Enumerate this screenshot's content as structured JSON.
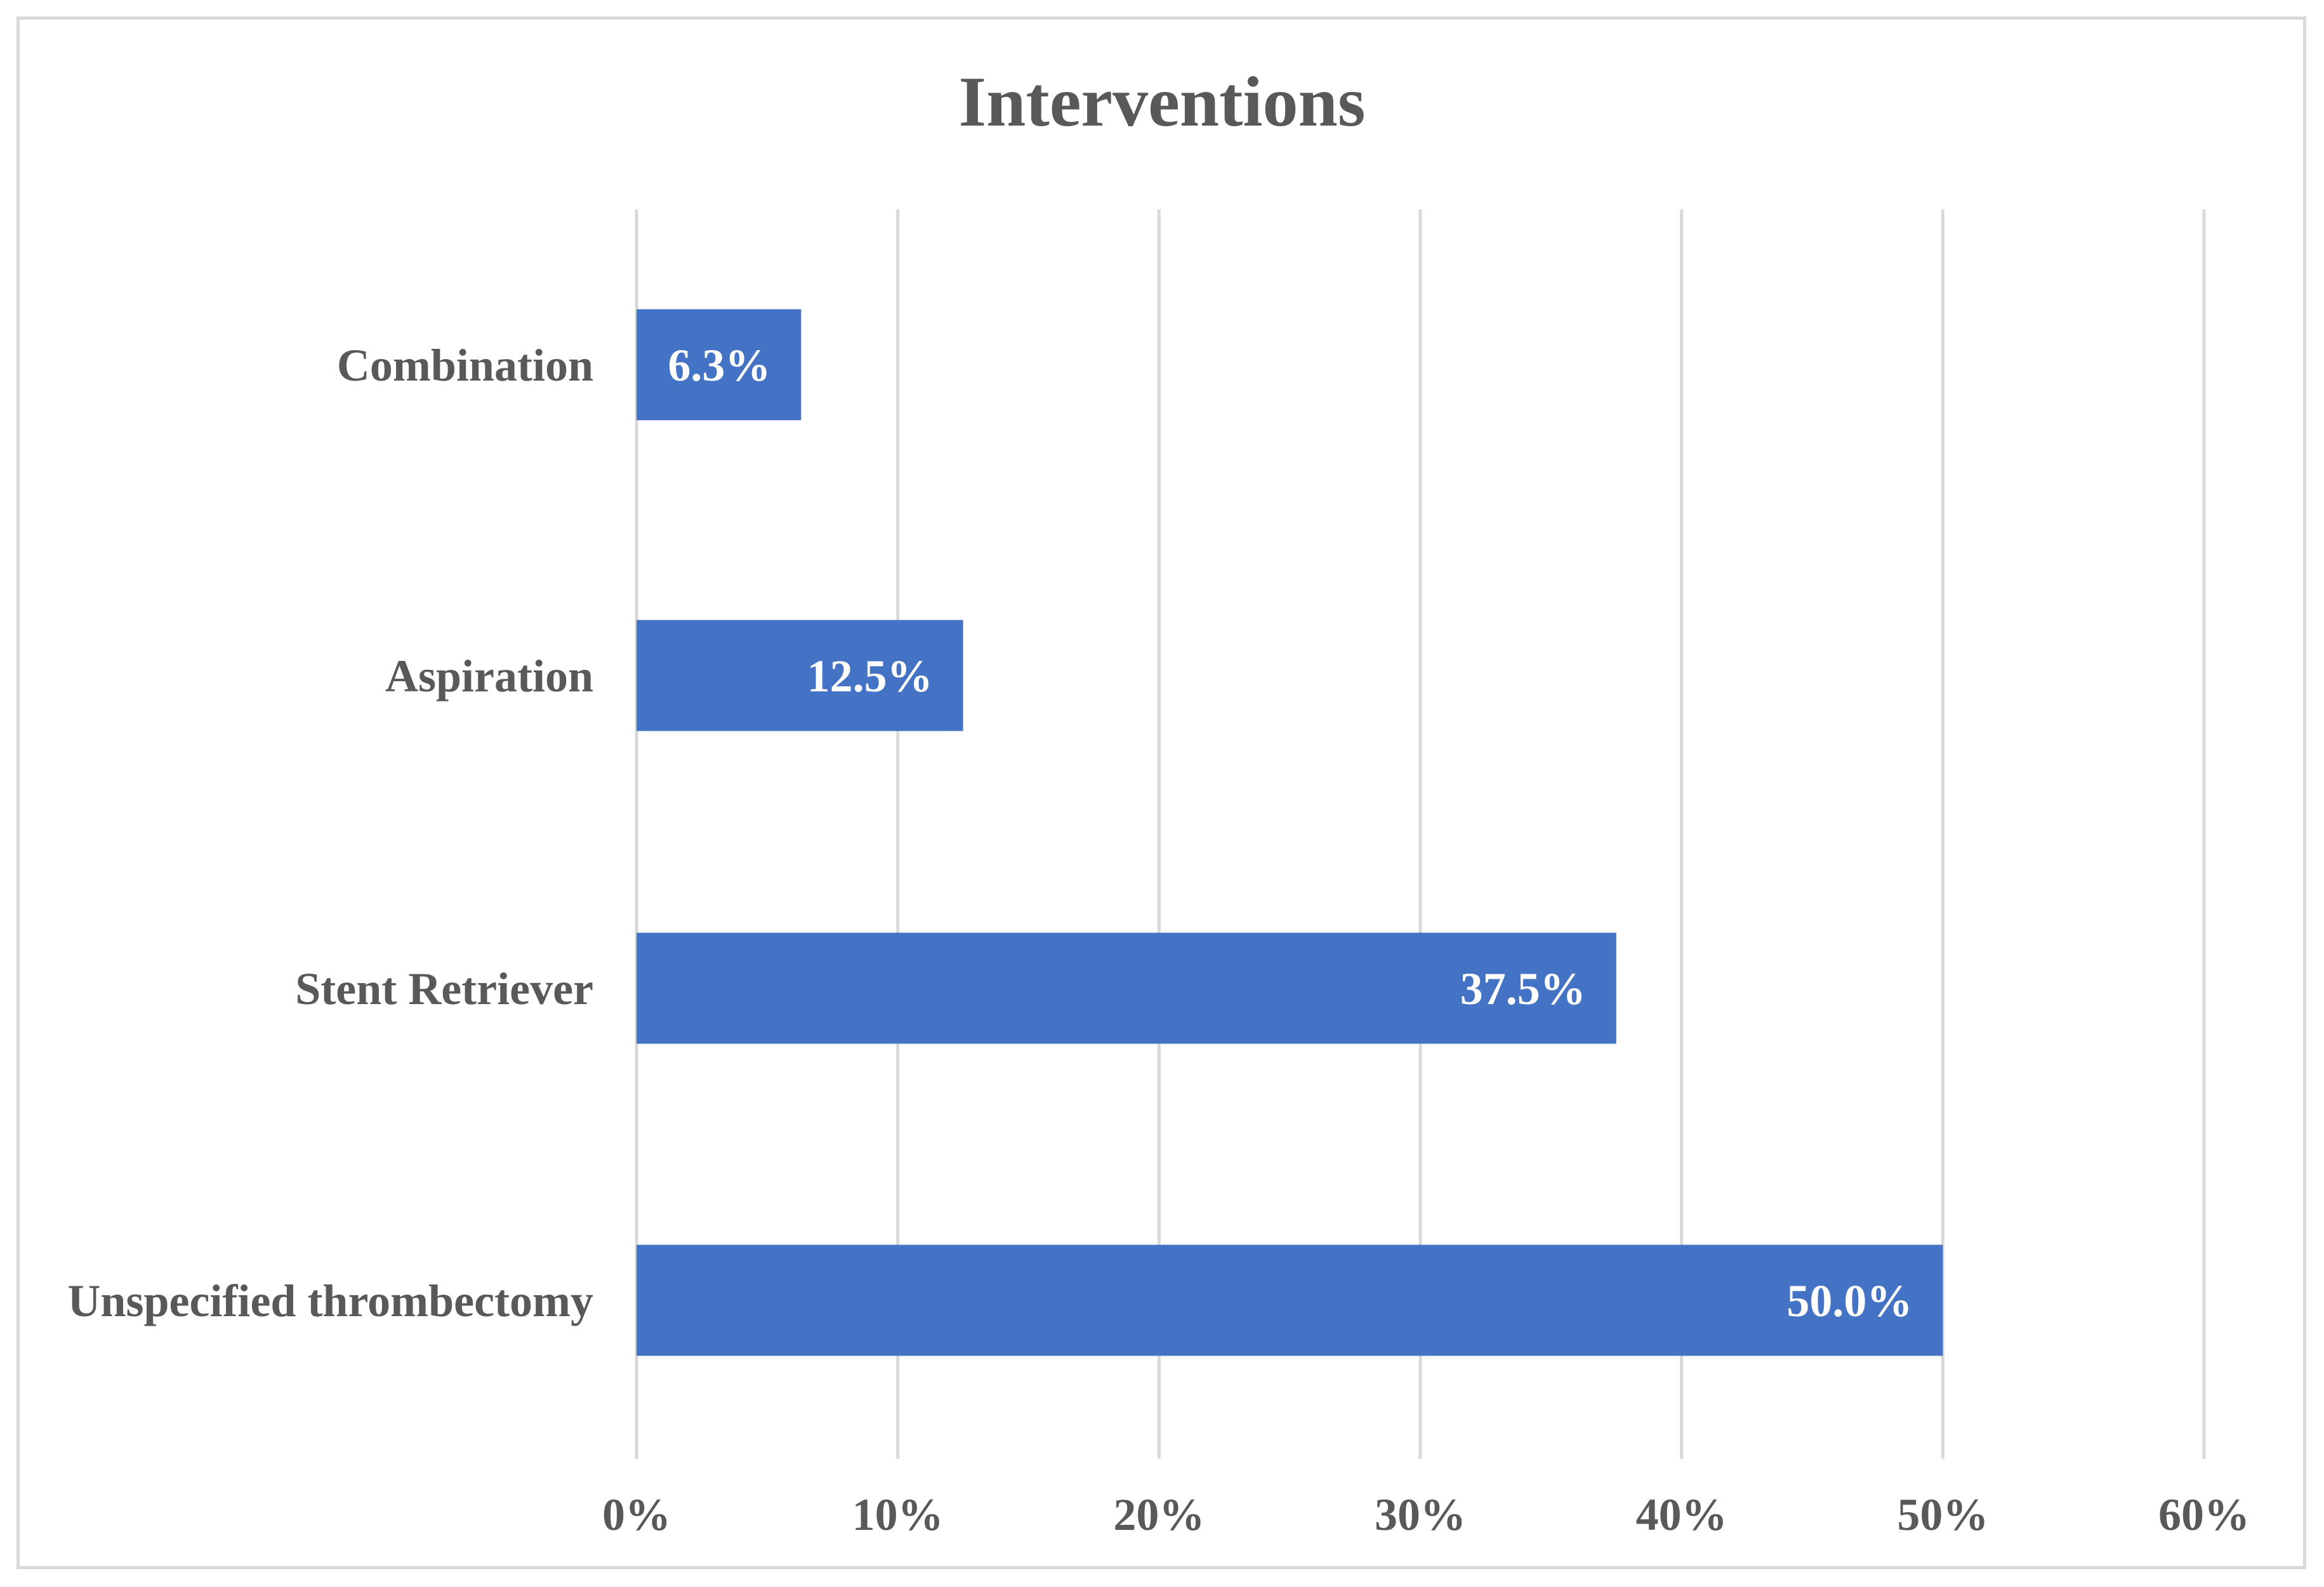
{
  "chart_data": {
    "type": "bar",
    "orientation": "horizontal",
    "title": "Interventions",
    "xlabel": "",
    "ylabel": "",
    "categories": [
      "Combination",
      "Aspiration",
      "Stent Retriever",
      "Unspecified thrombectomy"
    ],
    "values": [
      6.3,
      12.5,
      37.5,
      50.0
    ],
    "data_labels": [
      "6.3%",
      "12.5%",
      "37.5%",
      "50.0%"
    ],
    "xlim": [
      0,
      60
    ],
    "x_ticks": [
      0,
      10,
      20,
      30,
      40,
      50,
      60
    ],
    "x_tick_labels": [
      "0%",
      "10%",
      "20%",
      "30%",
      "40%",
      "50%",
      "60%"
    ],
    "grid": "vertical",
    "legend": "none",
    "colors": {
      "bar": "#4472c4",
      "gridline": "#d9d9d9",
      "text": "#595959",
      "data_label": "#ffffff",
      "frame": "#d9d9d9"
    }
  }
}
